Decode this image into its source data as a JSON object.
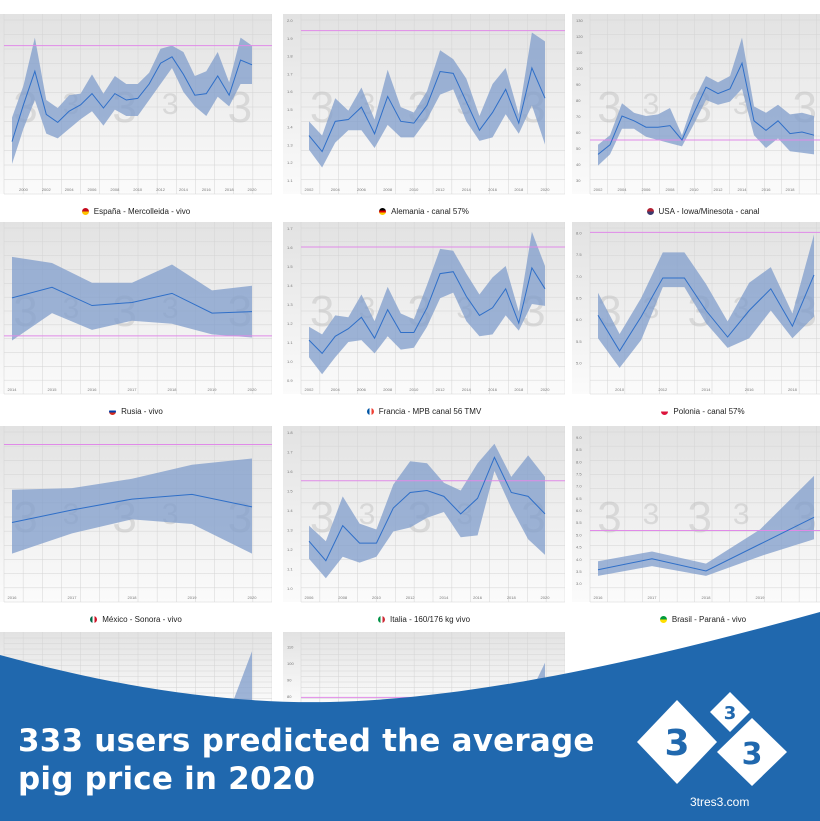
{
  "colors": {
    "band": "#7f9ccb",
    "line": "#2f6fc8",
    "target": "#e08ae8",
    "banner": "#2068ae",
    "bg_top": "#e2e2e2",
    "bg_bottom": "#fbfbfb"
  },
  "watermark": "3",
  "headline": {
    "line1": "333 users predicted the average",
    "line2": "pig price in 2020"
  },
  "logo": {
    "digit": "3",
    "site": "3tres3.com"
  },
  "chart_data": [
    {
      "type": "area",
      "title": "España - Mercolleida - vivo",
      "flag": [
        "#c60b1e",
        "#ffc400"
      ],
      "ylim": [
        0,
        10
      ],
      "yticks": [],
      "xticks": [
        2000,
        2002,
        2004,
        2006,
        2008,
        2010,
        2012,
        2014,
        2016,
        2018,
        2020
      ],
      "x": [
        1999,
        2000,
        2001,
        2002,
        2003,
        2004,
        2005,
        2006,
        2007,
        2008,
        2009,
        2010,
        2011,
        2012,
        2013,
        2014,
        2015,
        2016,
        2017,
        2018,
        2019,
        2020
      ],
      "mean": [
        2.4,
        4.7,
        6.8,
        4.1,
        3.6,
        4.3,
        4.7,
        5.4,
        4.5,
        5.4,
        5.0,
        5.1,
        6.0,
        7.3,
        7.7,
        6.6,
        5.3,
        5.4,
        6.5,
        5.3,
        7.5,
        7.2
      ],
      "hi": [
        3.9,
        5.9,
        8.9,
        5.0,
        4.5,
        5.3,
        5.4,
        6.6,
        5.4,
        6.5,
        6.0,
        6.0,
        6.7,
        8.2,
        8.4,
        8.0,
        6.5,
        6.8,
        8.0,
        6.1,
        8.9,
        8.4
      ],
      "lo": [
        1.0,
        3.2,
        5.0,
        2.9,
        2.6,
        3.2,
        3.8,
        4.3,
        3.4,
        4.4,
        4.0,
        4.0,
        5.0,
        6.0,
        7.0,
        5.5,
        4.6,
        4.0,
        5.2,
        4.6,
        6.0,
        6.0
      ],
      "target": 8.4
    },
    {
      "type": "area",
      "title": "Alemania - canal 57%",
      "flag": [
        "#000000",
        "#dd0000",
        "#ffce00"
      ],
      "ylim": [
        1.1,
        2.0
      ],
      "yticks": [
        1.1,
        1.2,
        1.3,
        1.4,
        1.5,
        1.6,
        1.7,
        1.8,
        1.9,
        2.0
      ],
      "xticks": [
        2002,
        2004,
        2006,
        2008,
        2010,
        2012,
        2014,
        2016,
        2018,
        2020
      ],
      "x": [
        2002,
        2003,
        2004,
        2005,
        2006,
        2007,
        2008,
        2009,
        2010,
        2011,
        2012,
        2013,
        2014,
        2015,
        2016,
        2017,
        2018,
        2019,
        2020
      ],
      "mean": [
        1.35,
        1.26,
        1.43,
        1.44,
        1.51,
        1.36,
        1.57,
        1.43,
        1.42,
        1.52,
        1.71,
        1.7,
        1.54,
        1.38,
        1.48,
        1.61,
        1.42,
        1.73,
        1.56
      ],
      "hi": [
        1.43,
        1.35,
        1.56,
        1.49,
        1.62,
        1.44,
        1.72,
        1.51,
        1.48,
        1.6,
        1.83,
        1.78,
        1.67,
        1.46,
        1.64,
        1.73,
        1.47,
        1.93,
        1.88
      ],
      "lo": [
        1.27,
        1.17,
        1.31,
        1.38,
        1.38,
        1.28,
        1.41,
        1.34,
        1.34,
        1.44,
        1.58,
        1.61,
        1.43,
        1.32,
        1.34,
        1.47,
        1.36,
        1.52,
        1.3
      ],
      "target": 1.94
    },
    {
      "type": "area",
      "title": "USA - Iowa/Minesota - canal",
      "flag": [
        "#b22234",
        "#3c3b6e"
      ],
      "ylim": [
        30,
        130
      ],
      "yticks": [
        30,
        40,
        50,
        60,
        70,
        80,
        90,
        100,
        110,
        120,
        130
      ],
      "xticks": [
        2002,
        2004,
        2006,
        2008,
        2010,
        2012,
        2014,
        2016,
        2018
      ],
      "x": [
        2002,
        2003,
        2004,
        2005,
        2006,
        2007,
        2008,
        2009,
        2010,
        2011,
        2012,
        2013,
        2014,
        2015,
        2016,
        2017,
        2018,
        2019,
        2020
      ],
      "mean": [
        46,
        52,
        70,
        67,
        63,
        63,
        64,
        55,
        72,
        88,
        84,
        87,
        103,
        67,
        61,
        67,
        59,
        60,
        58
      ],
      "hi": [
        52,
        58,
        78,
        72,
        70,
        71,
        75,
        58,
        80,
        95,
        91,
        95,
        119,
        76,
        72,
        77,
        71,
        72,
        70
      ],
      "lo": [
        39,
        46,
        62,
        62,
        57,
        55,
        53,
        51,
        65,
        80,
        77,
        79,
        87,
        58,
        50,
        56,
        48,
        47,
        46
      ],
      "target": 55
    },
    {
      "type": "area",
      "title": "Rusia - vivo",
      "flag": [
        "#ffffff",
        "#0039a6",
        "#d52b1e"
      ],
      "ylim": [
        0,
        10
      ],
      "yticks": [],
      "xticks": [
        2014,
        2015,
        2016,
        2017,
        2018,
        2019,
        2020
      ],
      "x": [
        2014,
        2015,
        2016,
        2017,
        2018,
        2019,
        2020
      ],
      "mean": [
        5.4,
        6.1,
        4.9,
        5.1,
        5.7,
        4.4,
        4.5
      ],
      "hi": [
        8.1,
        7.7,
        6.4,
        6.4,
        7.6,
        5.9,
        6.2
      ],
      "lo": [
        2.6,
        4.4,
        3.3,
        3.9,
        3.7,
        3.0,
        2.8
      ],
      "target": 2.9
    },
    {
      "type": "area",
      "title": "Francia - MPB canal 56 TMV",
      "flag": [
        "#0055a4",
        "#ffffff",
        "#ef4135"
      ],
      "ylim": [
        0.9,
        1.7
      ],
      "yticks": [
        0.9,
        1.0,
        1.1,
        1.2,
        1.3,
        1.4,
        1.5,
        1.6,
        1.7
      ],
      "xticks": [
        2002,
        2004,
        2006,
        2008,
        2010,
        2012,
        2014,
        2016,
        2018,
        2020
      ],
      "x": [
        2002,
        2003,
        2004,
        2005,
        2006,
        2007,
        2008,
        2009,
        2010,
        2011,
        2012,
        2013,
        2014,
        2015,
        2016,
        2017,
        2018,
        2019,
        2020
      ],
      "mean": [
        1.11,
        1.04,
        1.13,
        1.17,
        1.23,
        1.12,
        1.27,
        1.15,
        1.15,
        1.28,
        1.46,
        1.47,
        1.34,
        1.24,
        1.28,
        1.38,
        1.2,
        1.49,
        1.38
      ],
      "hi": [
        1.18,
        1.14,
        1.24,
        1.23,
        1.35,
        1.21,
        1.39,
        1.25,
        1.22,
        1.4,
        1.59,
        1.58,
        1.46,
        1.35,
        1.44,
        1.5,
        1.26,
        1.68,
        1.5
      ],
      "lo": [
        1.02,
        0.93,
        1.02,
        1.1,
        1.11,
        1.04,
        1.13,
        1.06,
        1.07,
        1.18,
        1.33,
        1.36,
        1.21,
        1.13,
        1.14,
        1.24,
        1.16,
        1.3,
        1.29
      ],
      "target": 1.6
    },
    {
      "type": "area",
      "title": "Polonia - canal 57%",
      "flag": [
        "#ffffff",
        "#dc143c"
      ],
      "ylim": [
        4.6,
        8.1
      ],
      "yticks": [
        5.0,
        5.5,
        6.0,
        6.5,
        7.0,
        7.5,
        8.0
      ],
      "xticks": [
        2010,
        2012,
        2014,
        2016,
        2018
      ],
      "x": [
        2009,
        2010,
        2011,
        2012,
        2013,
        2014,
        2015,
        2016,
        2017,
        2018,
        2019
      ],
      "mean": [
        6.09,
        5.27,
        6.06,
        6.95,
        6.95,
        6.2,
        5.59,
        6.2,
        6.7,
        5.84,
        7.02
      ],
      "hi": [
        6.61,
        5.66,
        6.49,
        7.54,
        7.54,
        6.81,
        5.95,
        6.84,
        7.2,
        6.13,
        7.95
      ],
      "lo": [
        5.56,
        4.88,
        5.52,
        6.74,
        6.74,
        5.91,
        5.34,
        5.56,
        6.2,
        5.56,
        6.06
      ],
      "target": 8.0
    },
    {
      "type": "area",
      "title": "México - Sonora - vivo",
      "flag": [
        "#006847",
        "#ffffff",
        "#ce1126"
      ],
      "ylim": [
        0,
        10
      ],
      "yticks": [],
      "xticks": [
        2016,
        2017,
        2018,
        2019,
        2020
      ],
      "x": [
        2016,
        2017,
        2018,
        2019,
        2020
      ],
      "mean": [
        4.2,
        5.0,
        5.7,
        6.0,
        5.2
      ],
      "hi": [
        6.3,
        6.4,
        7.0,
        7.9,
        8.3
      ],
      "lo": [
        2.2,
        3.5,
        4.4,
        4.1,
        2.2
      ],
      "target": 9.2
    },
    {
      "type": "area",
      "title": "Italia - 160/176 kg vivo",
      "flag": [
        "#009246",
        "#ffffff",
        "#ce2b37"
      ],
      "ylim": [
        1.0,
        1.8
      ],
      "yticks": [
        1.0,
        1.1,
        1.2,
        1.3,
        1.4,
        1.5,
        1.6,
        1.7,
        1.8
      ],
      "xticks": [
        2006,
        2008,
        2010,
        2012,
        2014,
        2016,
        2018,
        2020
      ],
      "x": [
        2006,
        2007,
        2008,
        2009,
        2010,
        2011,
        2012,
        2013,
        2014,
        2015,
        2016,
        2017,
        2018,
        2019,
        2020
      ],
      "mean": [
        1.24,
        1.14,
        1.32,
        1.23,
        1.23,
        1.41,
        1.49,
        1.5,
        1.47,
        1.38,
        1.46,
        1.67,
        1.49,
        1.47,
        1.38
      ],
      "hi": [
        1.32,
        1.24,
        1.47,
        1.33,
        1.3,
        1.53,
        1.65,
        1.64,
        1.54,
        1.5,
        1.64,
        1.74,
        1.57,
        1.68,
        1.57
      ],
      "lo": [
        1.15,
        1.05,
        1.16,
        1.13,
        1.16,
        1.29,
        1.31,
        1.36,
        1.39,
        1.26,
        1.27,
        1.6,
        1.41,
        1.25,
        1.17
      ],
      "target": 1.55
    },
    {
      "type": "area",
      "title": "Brasil - Paraná - vivo",
      "flag": [
        "#009c3b",
        "#ffdf00"
      ],
      "ylim": [
        2.8,
        9.2
      ],
      "yticks": [
        3.0,
        3.5,
        4.0,
        4.5,
        5.0,
        5.5,
        6.0,
        6.5,
        7.0,
        7.5,
        8.0,
        8.5,
        9.0
      ],
      "xticks": [
        2016,
        2017,
        2018,
        2019
      ],
      "x": [
        2016,
        2017,
        2018,
        2019,
        2020
      ],
      "mean": [
        3.55,
        4.0,
        3.5,
        4.6,
        5.7
      ],
      "hi": [
        3.9,
        4.3,
        3.8,
        5.2,
        7.4
      ],
      "lo": [
        3.3,
        3.7,
        3.3,
        4.1,
        4.8
      ],
      "target": 5.16
    },
    {
      "type": "area",
      "title": "",
      "flag": [],
      "ylim": [
        0,
        10
      ],
      "yticks": [],
      "xticks": [],
      "x": [
        2018,
        2019,
        2020
      ],
      "mean": [],
      "hi": [
        0,
        0,
        8
      ],
      "lo": [
        0,
        0,
        0
      ],
      "target": null
    },
    {
      "type": "area",
      "title": "",
      "flag": [],
      "ylim": [
        75,
        115
      ],
      "yticks": [
        80,
        90,
        100,
        110
      ],
      "xticks": [],
      "x": [
        2018,
        2019,
        2020
      ],
      "mean": [],
      "hi": [
        0,
        0,
        100
      ],
      "lo": [
        0,
        0,
        0
      ],
      "target": 79
    }
  ]
}
